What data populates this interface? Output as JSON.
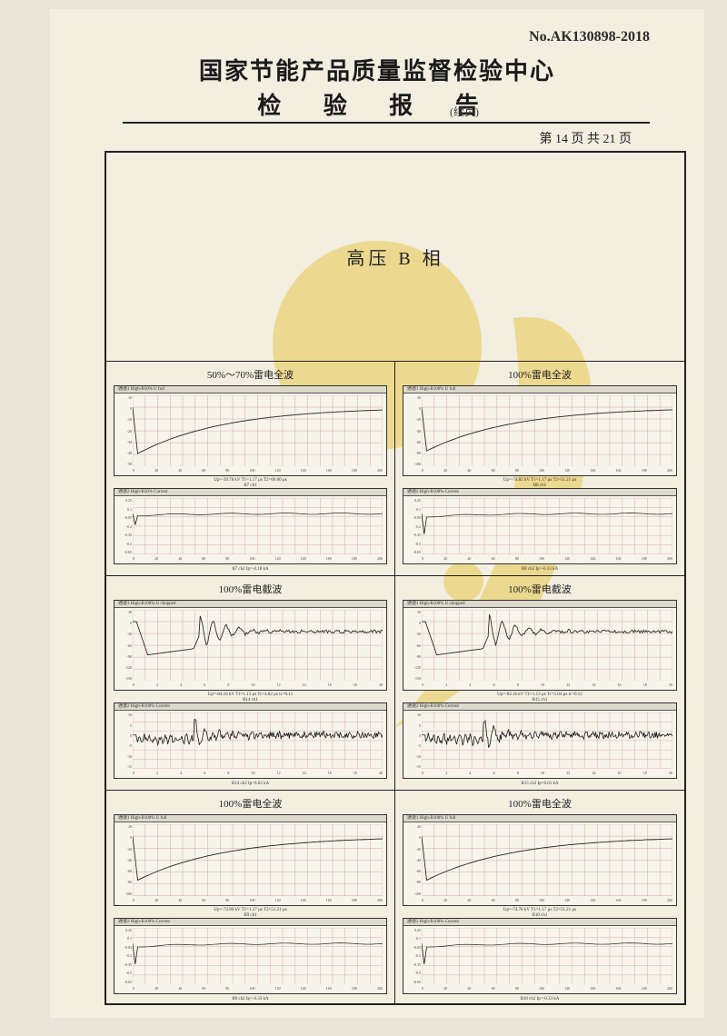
{
  "background_color": "#e8e4d8",
  "paper_color": "#f2eee0",
  "border_color": "#222222",
  "grid_color": "#bb8888",
  "trace_color": "#222222",
  "watermark_color": "#e8c84d",
  "header": {
    "doc_no": "No.AK130898-2018",
    "title_line1": "国家节能产品质量监督检验中心",
    "title_line2": "检 验 报 告",
    "continuation": "(续页)",
    "page_indicator": "第 14 页 共 21 页"
  },
  "section_title": "高压 B 相",
  "charts": [
    {
      "title": "50%～70%雷电全波",
      "upper": {
        "header": "通道1  High-B50% U full",
        "yticks": [
          10,
          0,
          -10,
          -20,
          -30,
          -40,
          -50
        ],
        "xticks": [
          0,
          10,
          20,
          30,
          40,
          50,
          60,
          70,
          80,
          90,
          100,
          110,
          120,
          130,
          140,
          150,
          160,
          170,
          180,
          190,
          200
        ],
        "ylim": [
          -50,
          10
        ],
        "xlim": [
          0,
          200
        ],
        "trace_type": "impulse_full",
        "peak": -39.78,
        "meas": "Up=-39.78 kV  T1=1.17 µs  T2=60.00 µs",
        "footer": "B7 ch1"
      },
      "lower": {
        "header": "通道2  High-B50% Current",
        "yticks": [
          0.25,
          0.1,
          -0.05,
          -0.2,
          -0.35,
          -0.5,
          -0.65
        ],
        "xticks": [
          0,
          10,
          20,
          30,
          40,
          50,
          60,
          70,
          80,
          90,
          100,
          110,
          120,
          130,
          140,
          150,
          160,
          170,
          180,
          190,
          200
        ],
        "ylim": [
          -0.65,
          0.25
        ],
        "xlim": [
          0,
          200
        ],
        "trace_type": "current_spike",
        "peak": -0.18,
        "meas": "",
        "footer": "B7 ch2  Ip=-0.18 kA"
      }
    },
    {
      "title": "100%雷电全波",
      "upper": {
        "header": "通道1  High-B100% U full",
        "yticks": [
          20,
          0,
          -20,
          -40,
          -60,
          -80,
          -100
        ],
        "xticks": [
          0,
          10,
          20,
          30,
          40,
          50,
          60,
          70,
          80,
          90,
          100,
          110,
          120,
          130,
          140,
          150,
          160,
          170,
          180,
          190,
          200
        ],
        "ylim": [
          -100,
          20
        ],
        "xlim": [
          0,
          200
        ],
        "trace_type": "impulse_full",
        "peak": -74.82,
        "meas": "Up=-74.82 kV  T1=1.17 µs  T2=51.21 µs",
        "footer": "B8 ch1"
      },
      "lower": {
        "header": "通道2  High-B100% Current",
        "yticks": [
          0.25,
          0.1,
          -0.05,
          -0.2,
          -0.35,
          -0.5,
          -0.65
        ],
        "xticks": [
          0,
          10,
          20,
          30,
          40,
          50,
          60,
          70,
          80,
          90,
          100,
          110,
          120,
          130,
          140,
          150,
          160,
          170,
          180,
          190,
          200
        ],
        "ylim": [
          -0.65,
          0.25
        ],
        "xlim": [
          0,
          200
        ],
        "trace_type": "current_spike",
        "peak": -0.33,
        "meas": "",
        "footer": "B8 ch2  Ip=-0.33 kA"
      }
    },
    {
      "title": "100%雷电截波",
      "upper": {
        "header": "通道1  High-B100% U chopped",
        "yticks": [
          30,
          0,
          -30,
          -60,
          -90,
          -120,
          -150
        ],
        "xticks": [
          0,
          1,
          2,
          3,
          4,
          5,
          6,
          7,
          8,
          9,
          10,
          11,
          12,
          13,
          14,
          15,
          16,
          17,
          18,
          19,
          20
        ],
        "ylim": [
          -150,
          30
        ],
        "xlim": [
          0,
          20
        ],
        "trace_type": "chopped",
        "peak": -84.16,
        "meas": "Up=-84.16 kV  T1=1.13 µs  Tc=4.82 µs  tc=0.11",
        "footer": "B14 ch1"
      },
      "lower": {
        "header": "通道2  High-B100% Current",
        "yticks": [
          10,
          5,
          0,
          -5,
          -10,
          -15
        ],
        "xticks": [
          0,
          1,
          2,
          3,
          4,
          5,
          6,
          7,
          8,
          9,
          10,
          11,
          12,
          13,
          14,
          15,
          16,
          17,
          18,
          19,
          20
        ],
        "ylim": [
          -15,
          10
        ],
        "xlim": [
          0,
          20
        ],
        "trace_type": "chopped_current",
        "peak": 6.62,
        "meas": "",
        "footer": "B14 ch2  Ip=6.62 kA"
      }
    },
    {
      "title": "100%雷电截波",
      "upper": {
        "header": "通道1  High-B100% U chopped",
        "yticks": [
          30,
          0,
          -30,
          -60,
          -90,
          -120,
          -150
        ],
        "xticks": [
          0,
          1,
          2,
          3,
          4,
          5,
          6,
          7,
          8,
          9,
          10,
          11,
          12,
          13,
          14,
          15,
          16,
          17,
          18,
          19,
          20
        ],
        "ylim": [
          -150,
          30
        ],
        "xlim": [
          0,
          20
        ],
        "trace_type": "chopped",
        "peak": -84.16,
        "meas": "Up=-84.16 kV  T1=1.13 µs  Tc=5.04 µs  tc=0.12",
        "footer": "B15 ch1"
      },
      "lower": {
        "header": "通道2  High-B100% Current",
        "yticks": [
          10,
          5,
          0,
          -5,
          -10,
          -15
        ],
        "xticks": [
          0,
          1,
          2,
          3,
          4,
          5,
          6,
          7,
          8,
          9,
          10,
          11,
          12,
          13,
          14,
          15,
          16,
          17,
          18,
          19,
          20
        ],
        "ylim": [
          -15,
          10
        ],
        "xlim": [
          0,
          20
        ],
        "trace_type": "chopped_current",
        "peak": 6.61,
        "meas": "",
        "footer": "B15 ch2  Ip=6.61 kA"
      }
    },
    {
      "title": "100%雷电全波",
      "upper": {
        "header": "通道1  High-B100% U full",
        "yticks": [
          20,
          0,
          -20,
          -40,
          -60,
          -80,
          -100
        ],
        "xticks": [
          0,
          10,
          20,
          30,
          40,
          50,
          60,
          70,
          80,
          90,
          100,
          110,
          120,
          130,
          140,
          150,
          160,
          170,
          180,
          190,
          200
        ],
        "ylim": [
          -100,
          20
        ],
        "xlim": [
          0,
          200
        ],
        "trace_type": "impulse_full",
        "peak": -74.9,
        "meas": "Up=-74.90 kV  T1=1.17 µs  T2=51.21 µs",
        "footer": "B9 ch1"
      },
      "lower": {
        "header": "通道2  High-B100% Current",
        "yticks": [
          0.25,
          0.1,
          -0.05,
          -0.2,
          -0.35,
          -0.5,
          -0.65
        ],
        "xticks": [
          0,
          10,
          20,
          30,
          40,
          50,
          60,
          70,
          80,
          90,
          100,
          110,
          120,
          130,
          140,
          150,
          160,
          170,
          180,
          190,
          200
        ],
        "ylim": [
          -0.65,
          0.25
        ],
        "xlim": [
          0,
          200
        ],
        "trace_type": "current_spike",
        "peak": -0.33,
        "meas": "",
        "footer": "B9 ch2  Ip=-0.33 kA"
      }
    },
    {
      "title": "100%雷电全波",
      "upper": {
        "header": "通道1  High-B100% U full",
        "yticks": [
          20,
          0,
          -20,
          -40,
          -60,
          -80,
          -100
        ],
        "xticks": [
          0,
          10,
          20,
          30,
          40,
          50,
          60,
          70,
          80,
          90,
          100,
          110,
          120,
          130,
          140,
          150,
          160,
          170,
          180,
          190,
          200
        ],
        "ylim": [
          -100,
          20
        ],
        "xlim": [
          0,
          200
        ],
        "trace_type": "impulse_full",
        "peak": -74.78,
        "meas": "Up=-74.78 kV  T1=1.17 µs  T2=51.21 µs",
        "footer": "B10 ch1"
      },
      "lower": {
        "header": "通道2  High-B100% Current",
        "yticks": [
          0.25,
          0.1,
          -0.05,
          -0.2,
          -0.35,
          -0.5,
          -0.65
        ],
        "xticks": [
          0,
          10,
          20,
          30,
          40,
          50,
          60,
          70,
          80,
          90,
          100,
          110,
          120,
          130,
          140,
          150,
          160,
          170,
          180,
          190,
          200
        ],
        "ylim": [
          -0.65,
          0.25
        ],
        "xlim": [
          0,
          200
        ],
        "trace_type": "current_spike",
        "peak": -0.33,
        "meas": "",
        "footer": "B10 ch2  Ip=-0.33 kA"
      }
    }
  ]
}
